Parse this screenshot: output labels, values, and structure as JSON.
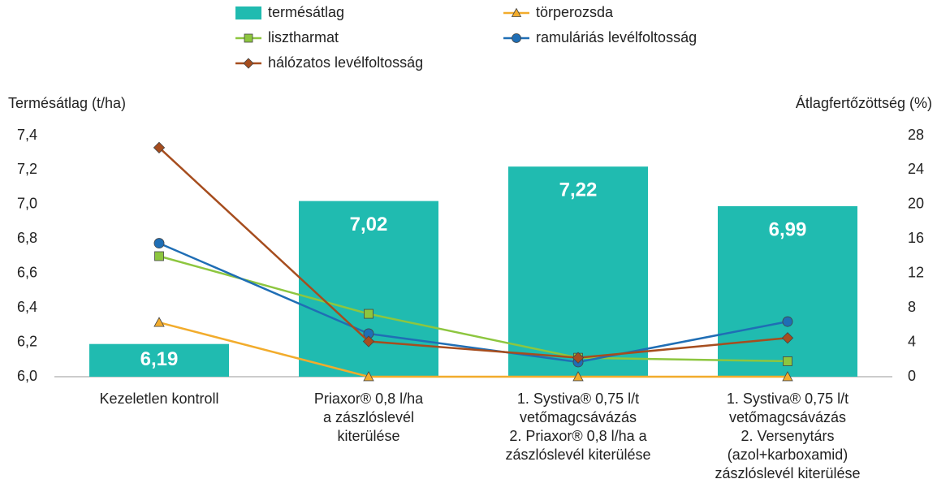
{
  "chart_data": {
    "type": "bar",
    "y_label": "Termésátlag (t/ha)",
    "y2_label": "Átlagfertőzöttség (%)",
    "categories": [
      [
        "Kezeletlen kontroll"
      ],
      [
        "Priaxor® 0,8 l/ha",
        "a zászlóslevél",
        "kiterülése"
      ],
      [
        "1. Systiva® 0,75 l/t",
        "vetőmagcsávázás",
        "2. Priaxor® 0,8 l/ha a",
        "zászlóslevél kiterülése"
      ],
      [
        "1. Systiva® 0,75 l/t",
        "vetőmagcsávázás",
        "2. Versenytárs",
        "(azol+karboxamid)",
        "zászlóslevél kiterülése"
      ]
    ],
    "bar_series": {
      "name": "termésátlag",
      "color": "#20bbb0",
      "values": [
        6.19,
        7.02,
        7.22,
        6.99
      ],
      "value_labels": [
        "6,19",
        "7,02",
        "7,22",
        "6,99"
      ]
    },
    "series": [
      {
        "name": "törperozsda",
        "color": "#f2ac2c",
        "marker": "triangle",
        "axis": "y2",
        "values": [
          6.3,
          0,
          0,
          0
        ]
      },
      {
        "name": "lisztharmat",
        "color": "#8dc63f",
        "marker": "square",
        "axis": "y2",
        "values": [
          14.0,
          7.3,
          2.2,
          1.8
        ]
      },
      {
        "name": "ramuláriás levélfoltosság",
        "color": "#1f6eb5",
        "marker": "circle",
        "axis": "y2",
        "values": [
          15.5,
          5.0,
          1.7,
          6.4
        ]
      },
      {
        "name": "hálózatos levélfoltosság",
        "color": "#a64d1e",
        "marker": "diamond",
        "axis": "y2",
        "values": [
          26.6,
          4.1,
          2.2,
          4.5
        ]
      }
    ],
    "ylim": [
      6.0,
      7.4
    ],
    "yticks": [
      {
        "value": 6.0,
        "label": "6,0"
      },
      {
        "value": 6.2,
        "label": "6,2"
      },
      {
        "value": 6.4,
        "label": "6,4"
      },
      {
        "value": 6.6,
        "label": "6,6"
      },
      {
        "value": 6.8,
        "label": "6,8"
      },
      {
        "value": 7.0,
        "label": "7,0"
      },
      {
        "value": 7.2,
        "label": "7,2"
      },
      {
        "value": 7.4,
        "label": "7,4"
      }
    ],
    "y2lim": [
      0,
      28
    ],
    "y2ticks": [
      0,
      4,
      8,
      12,
      16,
      20,
      24,
      28
    ],
    "grid": false
  }
}
